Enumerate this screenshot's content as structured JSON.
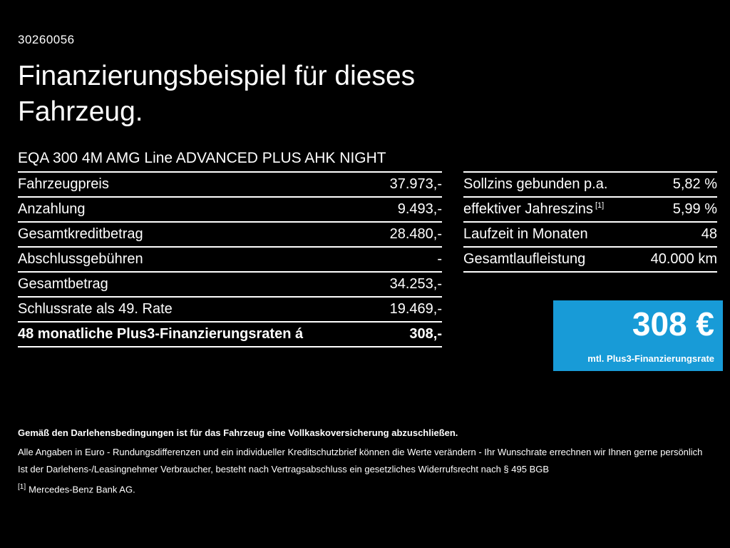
{
  "header": {
    "id": "30260056",
    "title_line1": "Finanzierungsbeispiel für dieses",
    "title_line2": "Fahrzeug.",
    "vehicle": "EQA 300 4M AMG Line ADVANCED PLUS AHK NIGHT"
  },
  "left_table": {
    "rows": [
      {
        "label": "Fahrzeugpreis",
        "value": "37.973,-"
      },
      {
        "label": "Anzahlung",
        "value": "9.493,-"
      },
      {
        "label": "Gesamtkreditbetrag",
        "value": "28.480,-"
      },
      {
        "label": "Abschlussgebühren",
        "value": "-"
      },
      {
        "label": "Gesamtbetrag",
        "value": "34.253,-"
      },
      {
        "label": "Schlussrate als 49. Rate",
        "value": "19.469,-"
      },
      {
        "label": "48 monatliche Plus3-Finanzierungsraten á",
        "value": "308,-"
      }
    ]
  },
  "right_table": {
    "rows": [
      {
        "label": "Sollzins gebunden p.a.",
        "sup": "",
        "value": "5,82 %"
      },
      {
        "label": "effektiver Jahreszins",
        "sup": "[1]",
        "value": "5,99 %"
      },
      {
        "label": "Laufzeit in Monaten",
        "sup": "",
        "value": "48"
      },
      {
        "label": "Gesamtlaufleistung",
        "sup": "",
        "value": "40.000 km"
      }
    ]
  },
  "rate_box": {
    "amount": "308 €",
    "caption": "mtl. Plus3-Finanzierungsrate",
    "color": "#189bd7"
  },
  "footer": {
    "line_bold": "Gemäß den Darlehensbedingungen ist für das Fahrzeug eine Vollkaskoversicherung abzuschließen.",
    "line2": "Alle Angaben in Euro - Rundungsdifferenzen und ein individueller Kreditschutzbrief können die Werte verändern - Ihr Wunschrate errechnen wir Ihnen gerne persönlich",
    "line3": "Ist der Darlehens-/Leasingnehmer Verbraucher, besteht nach Vertragsabschluss ein gesetzliches Widerrufsrecht nach § 495 BGB",
    "footnote_marker": "[1]",
    "footnote_text": "Mercedes-Benz Bank AG."
  }
}
